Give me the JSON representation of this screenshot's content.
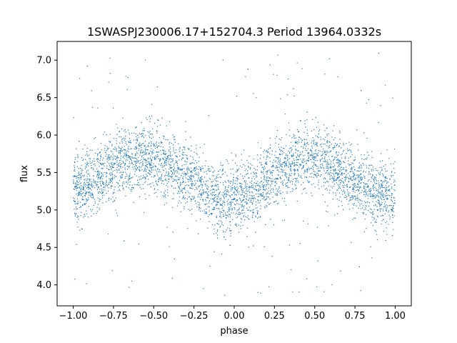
{
  "chart_data": {
    "type": "scatter",
    "title": "1SWASPJ230006.17+152704.3 Period 13964.0332s",
    "xlabel": "phase",
    "ylabel": "flux",
    "xlim": [
      -1.1,
      1.1
    ],
    "ylim": [
      3.72,
      7.25
    ],
    "xticks": [
      -1.0,
      -0.75,
      -0.5,
      -0.25,
      0.0,
      0.25,
      0.5,
      0.75,
      1.0
    ],
    "xtick_labels": [
      "−1.00",
      "−0.75",
      "−0.50",
      "−0.25",
      "0.00",
      "0.25",
      "0.50",
      "0.75",
      "1.00"
    ],
    "yticks": [
      4.0,
      4.5,
      5.0,
      5.5,
      6.0,
      6.5,
      7.0
    ],
    "ytick_labels": [
      "4.0",
      "4.5",
      "5.0",
      "5.5",
      "6.0",
      "6.5",
      "7.0"
    ],
    "grid": false,
    "marker_color": "#1f77b4",
    "series": [
      {
        "x_range": [
          -1.0,
          1.0
        ],
        "folded_phase_curve": {
          "x": [
            -1.0,
            -0.9,
            -0.8,
            -0.7,
            -0.6,
            -0.5,
            -0.4,
            -0.3,
            -0.2,
            -0.1,
            0.0,
            0.1,
            0.2,
            0.3,
            0.4,
            0.5,
            0.6,
            0.7,
            0.8,
            0.9,
            1.0
          ],
          "y": [
            5.25,
            5.35,
            5.5,
            5.65,
            5.7,
            5.68,
            5.58,
            5.45,
            5.3,
            5.15,
            5.1,
            5.2,
            5.4,
            5.6,
            5.7,
            5.68,
            5.58,
            5.45,
            5.3,
            5.2,
            5.2
          ]
        },
        "scatter_sigma": 0.22,
        "outlier_range": [
          3.85,
          7.1
        ]
      }
    ]
  }
}
